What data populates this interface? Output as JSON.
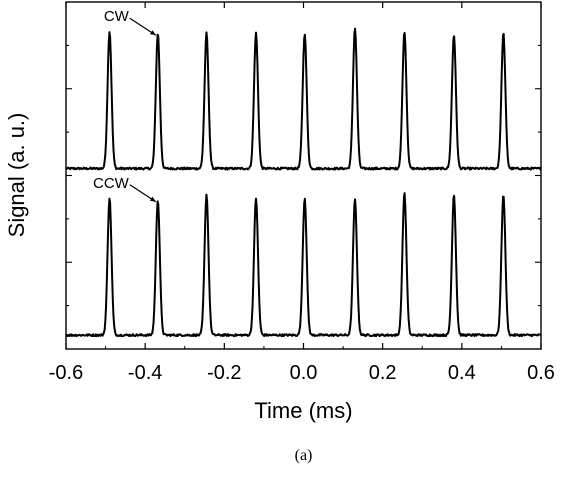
{
  "chart_data": {
    "type": "line",
    "title": "",
    "xlabel": "Time (ms)",
    "ylabel": "Signal (a. u.)",
    "panel_label": "(a)",
    "xlim": [
      -0.6,
      0.6
    ],
    "x_ticks": [
      -0.6,
      -0.4,
      -0.2,
      0.0,
      0.2,
      0.4,
      0.6
    ],
    "x_tick_labels": [
      "-0.6",
      "-0.4",
      "-0.2",
      "0.0",
      "0.2",
      "0.4",
      "0.6"
    ],
    "ylim": [
      0,
      2
    ],
    "y_tick_labels_shown": false,
    "grid": false,
    "series": [
      {
        "name": "CW",
        "baseline": 1.04,
        "pulse_width_ms": 0.005,
        "peaks": [
          {
            "x": -0.49,
            "y": 1.83
          },
          {
            "x": -0.368,
            "y": 1.82
          },
          {
            "x": -0.245,
            "y": 1.82
          },
          {
            "x": -0.12,
            "y": 1.82
          },
          {
            "x": 0.003,
            "y": 1.82
          },
          {
            "x": 0.13,
            "y": 1.85
          },
          {
            "x": 0.255,
            "y": 1.83
          },
          {
            "x": 0.38,
            "y": 1.81
          },
          {
            "x": 0.505,
            "y": 1.82
          }
        ]
      },
      {
        "name": "CCW",
        "baseline": 0.08,
        "pulse_width_ms": 0.005,
        "peaks": [
          {
            "x": -0.49,
            "y": 0.87
          },
          {
            "x": -0.368,
            "y": 0.86
          },
          {
            "x": -0.245,
            "y": 0.89
          },
          {
            "x": -0.12,
            "y": 0.87
          },
          {
            "x": 0.003,
            "y": 0.87
          },
          {
            "x": 0.13,
            "y": 0.86
          },
          {
            "x": 0.255,
            "y": 0.9
          },
          {
            "x": 0.38,
            "y": 0.89
          },
          {
            "x": 0.505,
            "y": 0.89
          }
        ]
      }
    ],
    "annotations": [
      {
        "text": "CW",
        "arrow_to": {
          "x": -0.368,
          "y": 1.82
        }
      },
      {
        "text": "CCW",
        "arrow_to": {
          "x": -0.368,
          "y": 0.86
        }
      }
    ]
  }
}
